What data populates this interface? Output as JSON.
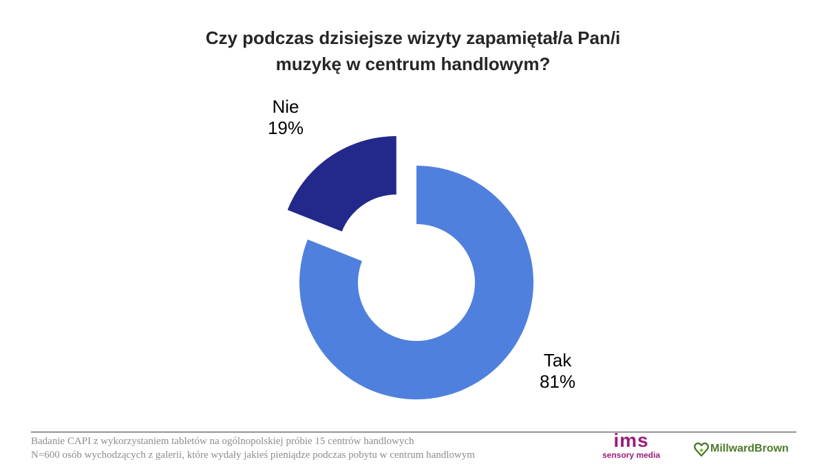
{
  "chart_data": {
    "type": "pie",
    "title_lines": [
      "Czy podczas dzisiejsze wizyty zapamiętał/a Pan/i",
      "muzykę w centrum handlowym?"
    ],
    "categories": [
      "Tak",
      "Nie"
    ],
    "values": [
      81,
      19
    ],
    "value_labels": [
      "81%",
      "19%"
    ],
    "donut": true,
    "exploded": "Nie",
    "colors": {
      "Tak": "#5080DD",
      "Nie": "#23298A"
    }
  },
  "footnote": {
    "line1": "Badanie CAPI z wykorzystaniem tabletów na ogólnopolskiej próbie 15 centrów handlowych",
    "line2": "N=600 osób wychodzących z galerii, które wydały jakieś pieniądze podczas pobytu w centrum handlowym"
  },
  "logos": {
    "ims": {
      "mark": "ims",
      "tagline": "sensory media",
      "color": "#9C1C7A"
    },
    "millward_brown": {
      "text": "MillwardBrown",
      "color": "#4D7A2B",
      "icon": "heart-diamond-icon"
    }
  }
}
